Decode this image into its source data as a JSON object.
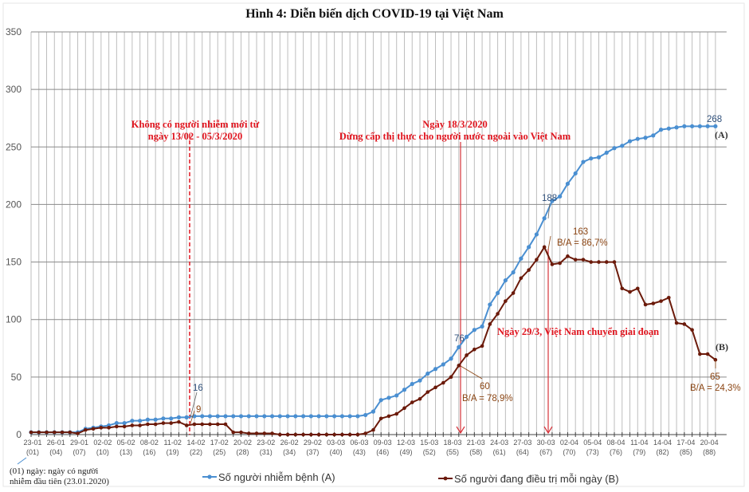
{
  "chart_data": {
    "type": "line",
    "title": "Hình 4: Diễn biến dịch COVID-19 tại Việt Nam",
    "xlabel": "",
    "ylabel": "",
    "ylim": [
      0,
      350
    ],
    "yticks": [
      0,
      50,
      100,
      150,
      200,
      250,
      300,
      350
    ],
    "grid": true,
    "legend_placement": "bottom",
    "x_tick_dates": [
      "23-01",
      "26-01",
      "29-01",
      "02-02",
      "05-02",
      "08-02",
      "11-02",
      "14-02",
      "17-02",
      "20-02",
      "23-02",
      "26-02",
      "29-02",
      "03-03",
      "06-03",
      "09-03",
      "12-03",
      "15-03",
      "18-03",
      "21-03",
      "24-03",
      "27-03",
      "30-03",
      "02-04",
      "05-04",
      "08-04",
      "11-04",
      "14-04",
      "17-04",
      "20-04"
    ],
    "x_tick_days": [
      "(01)",
      "(04)",
      "(07)",
      "(10)",
      "(13)",
      "(16)",
      "(19)",
      "(22)",
      "(25)",
      "(28)",
      "(31)",
      "(34)",
      "(37)",
      "(40)",
      "(43)",
      "(46)",
      "(49)",
      "(52)",
      "(55)",
      "(58)",
      "(61)",
      "(64)",
      "(67)",
      "(70)",
      "(73)",
      "(76)",
      "(79)",
      "(82)",
      "(85)",
      "(88)"
    ],
    "series": [
      {
        "name": "Số người nhiễm bệnh (A)",
        "tag": "(A)",
        "color": "#4a8fd1",
        "values": [
          2,
          2,
          2,
          2,
          2,
          2,
          2,
          5,
          6,
          7,
          8,
          10,
          10,
          12,
          12,
          13,
          13,
          14,
          14,
          15,
          15,
          16,
          16,
          16,
          16,
          16,
          16,
          16,
          16,
          16,
          16,
          16,
          16,
          16,
          16,
          16,
          16,
          16,
          16,
          16,
          16,
          16,
          16,
          17,
          20,
          30,
          32,
          34,
          39,
          44,
          47,
          53,
          57,
          61,
          66,
          76,
          85,
          91,
          94,
          113,
          123,
          134,
          141,
          153,
          163,
          174,
          188,
          203,
          207,
          218,
          227,
          237,
          240,
          241,
          245,
          249,
          251,
          255,
          257,
          258,
          260,
          265,
          266,
          267,
          268,
          268,
          268,
          268,
          268
        ]
      },
      {
        "name": "Số người đang điều trị mỗi ngày (B)",
        "tag": "(B)",
        "color": "#6b1a0a",
        "values": [
          2,
          2,
          2,
          2,
          2,
          2,
          1,
          4,
          5,
          6,
          6,
          7,
          7,
          8,
          8,
          9,
          9,
          10,
          10,
          11,
          8,
          9,
          9,
          9,
          9,
          9,
          2,
          2,
          1,
          1,
          1,
          1,
          0,
          0,
          0,
          0,
          0,
          0,
          0,
          0,
          0,
          0,
          0,
          1,
          4,
          14,
          16,
          18,
          23,
          28,
          31,
          37,
          41,
          45,
          50,
          60,
          69,
          74,
          77,
          96,
          105,
          116,
          123,
          136,
          143,
          152,
          163,
          148,
          149,
          155,
          152,
          152,
          150,
          150,
          150,
          150,
          127,
          124,
          127,
          113,
          114,
          116,
          119,
          97,
          96,
          91,
          70,
          70,
          65
        ]
      }
    ],
    "data_labels": {
      "a_feb13": "16",
      "b_feb13": "9",
      "a_mar18": "76",
      "b_mar18": "60",
      "ratio_mar18": "B/A = 78,9%",
      "a_mar29": "188",
      "b_mar29": "163",
      "ratio_mar29": "B/A = 86,7%",
      "a_last": "268",
      "b_last": "65",
      "ratio_last": "B/A = 24,3%"
    },
    "annotations": {
      "no_new_cases_line1": "Không có người nhiễm mới từ",
      "no_new_cases_line2": "ngày 13/02 - 05/3/2020",
      "visa_line1": "Ngày 18/3/2020",
      "visa_line2": "Dừng cấp thị thực cho người nước ngoài vào Việt Nam",
      "phase_change": "Ngày 29/3, Việt Nam chuyển giai đoạn"
    },
    "footnote": {
      "line1": "(01) ngày: ngày có người",
      "line2": "nhiễm đầu tiên (23.01.2020)"
    },
    "annotation_color": "#e0141e"
  }
}
